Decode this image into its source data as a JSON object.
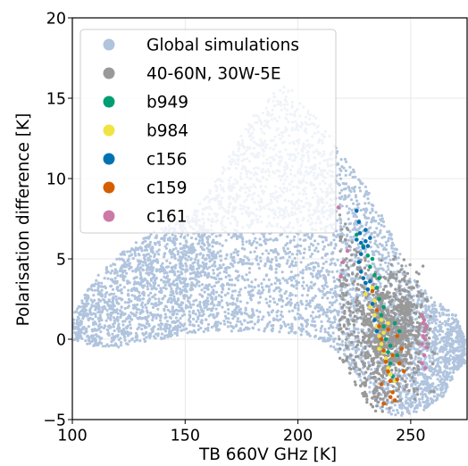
{
  "chart_data": {
    "type": "scatter",
    "title": "",
    "xlabel": "TB 660V GHz [K]",
    "ylabel": "Polarisation difference [K]",
    "xlim": [
      100,
      275
    ],
    "ylim": [
      -5,
      20
    ],
    "xticks": [
      100,
      150,
      200,
      250
    ],
    "yticks": [
      -5,
      0,
      5,
      10,
      15,
      20
    ],
    "x_tick_labels": [
      "100",
      "150",
      "200",
      "250"
    ],
    "y_tick_labels": [
      "−5",
      "0",
      "5",
      "10",
      "15",
      "20"
    ],
    "grid": true,
    "legend_position": "top-left",
    "series": [
      {
        "name": "Global simulations",
        "color": "#b0c4de",
        "envelope_upper": [
          [
            100,
            1.5
          ],
          [
            110,
            3.8
          ],
          [
            120,
            5.2
          ],
          [
            130,
            6.2
          ],
          [
            140,
            7.0
          ],
          [
            150,
            7.5
          ],
          [
            160,
            9.0
          ],
          [
            170,
            11.5
          ],
          [
            180,
            14.0
          ],
          [
            190,
            15.5
          ],
          [
            195,
            16.0
          ],
          [
            200,
            15.0
          ],
          [
            210,
            13.5
          ],
          [
            220,
            11.5
          ],
          [
            230,
            9.5
          ],
          [
            240,
            7.0
          ],
          [
            250,
            4.0
          ],
          [
            260,
            2.5
          ],
          [
            270,
            1.5
          ],
          [
            274,
            0.0
          ]
        ],
        "envelope_lower": [
          [
            100,
            0.0
          ],
          [
            110,
            -0.5
          ],
          [
            120,
            -0.5
          ],
          [
            130,
            -0.3
          ],
          [
            140,
            0.0
          ],
          [
            150,
            0.3
          ],
          [
            160,
            0.5
          ],
          [
            170,
            0.5
          ],
          [
            180,
            0.5
          ],
          [
            190,
            0.5
          ],
          [
            200,
            0.3
          ],
          [
            210,
            0.0
          ],
          [
            220,
            -1.0
          ],
          [
            230,
            -3.0
          ],
          [
            237,
            -4.5
          ],
          [
            245,
            -4.8
          ],
          [
            255,
            -4.5
          ],
          [
            265,
            -3.5
          ],
          [
            270,
            -2.0
          ],
          [
            274,
            -1.5
          ]
        ]
      },
      {
        "name": "40-60N, 30W-5E",
        "color": "#999999",
        "cluster": {
          "x_range": [
            215,
            262
          ],
          "y_range": [
            -4.5,
            8.5
          ],
          "center": [
            242,
            0.5
          ]
        }
      },
      {
        "name": "b949",
        "color": "#009e73",
        "points": [
          [
            226,
            6.5
          ],
          [
            229,
            5.8
          ],
          [
            231,
            5.2
          ],
          [
            232,
            4.5
          ],
          [
            234,
            4.0
          ],
          [
            235,
            3.2
          ],
          [
            236,
            2.5
          ],
          [
            237,
            1.5
          ],
          [
            238,
            0.8
          ],
          [
            239,
            0.0
          ],
          [
            240,
            -0.8
          ],
          [
            241,
            -1.5
          ],
          [
            242,
            -2.3
          ],
          [
            243,
            1.0
          ],
          [
            236,
            3.8
          ],
          [
            233,
            5.0
          ],
          [
            238,
            2.0
          ],
          [
            241,
            -0.4
          ],
          [
            244,
            -1.0
          ],
          [
            245,
            0.5
          ]
        ]
      },
      {
        "name": "b984",
        "color": "#f0e442",
        "points": [
          [
            230,
            2.8
          ],
          [
            232,
            2.0
          ],
          [
            234,
            1.5
          ],
          [
            235,
            0.8
          ],
          [
            236,
            0.2
          ],
          [
            237,
            -0.3
          ],
          [
            238,
            -0.8
          ],
          [
            239,
            -1.2
          ],
          [
            240,
            -1.8
          ],
          [
            241,
            -2.2
          ],
          [
            233,
            3.2
          ],
          [
            236,
            -0.6
          ],
          [
            238,
            0.4
          ],
          [
            240,
            1.0
          ],
          [
            242,
            -1.0
          ],
          [
            243,
            -2.6
          ],
          [
            234,
            2.4
          ],
          [
            237,
            1.2
          ]
        ]
      },
      {
        "name": "c156",
        "color": "#0072b2",
        "points": [
          [
            226,
            8.0
          ],
          [
            227,
            7.3
          ],
          [
            227.5,
            6.6
          ],
          [
            228,
            6.0
          ],
          [
            229,
            5.7
          ],
          [
            230,
            6.1
          ],
          [
            231,
            5.8
          ],
          [
            232,
            6.3
          ],
          [
            228,
            5.3
          ],
          [
            226,
            6.2
          ],
          [
            229,
            3.8
          ],
          [
            230,
            3.5
          ],
          [
            231,
            3.1
          ],
          [
            232,
            3.6
          ],
          [
            233,
            2.2
          ],
          [
            234,
            1.2
          ],
          [
            235,
            0.5
          ],
          [
            228,
            4.2
          ],
          [
            230,
            6.8
          ],
          [
            227,
            4.8
          ]
        ]
      },
      {
        "name": "c159",
        "color": "#d55e00",
        "points": [
          [
            233,
            3.0
          ],
          [
            235,
            1.8
          ],
          [
            236,
            0.8
          ],
          [
            237,
            0.0
          ],
          [
            238,
            -0.7
          ],
          [
            239,
            -1.4
          ],
          [
            240,
            -2.0
          ],
          [
            241,
            -2.6
          ],
          [
            242,
            -3.3
          ],
          [
            243,
            -3.8
          ],
          [
            238,
            -4.0
          ],
          [
            244,
            -2.5
          ],
          [
            245,
            -1.5
          ],
          [
            246,
            -0.6
          ],
          [
            240,
            0.6
          ],
          [
            242,
            -1.0
          ],
          [
            244,
            0.2
          ],
          [
            247,
            -2.0
          ],
          [
            237,
            -2.8
          ],
          [
            241,
            -3.6
          ]
        ]
      },
      {
        "name": "c161",
        "color": "#cc79a7",
        "points": [
          [
            255,
            1.5
          ],
          [
            255.5,
            1.0
          ],
          [
            256,
            0.5
          ],
          [
            256.5,
            0.0
          ],
          [
            257,
            -0.5
          ],
          [
            255,
            -0.3
          ],
          [
            256,
            -1.0
          ],
          [
            255.5,
            0.2
          ],
          [
            257,
            0.8
          ],
          [
            256,
            1.2
          ],
          [
            255,
            -1.5
          ],
          [
            256.5,
            -1.8
          ],
          [
            220,
            4.8
          ],
          [
            222,
            5.5
          ],
          [
            219,
            3.9
          ],
          [
            218,
            8.2
          ]
        ]
      }
    ]
  }
}
